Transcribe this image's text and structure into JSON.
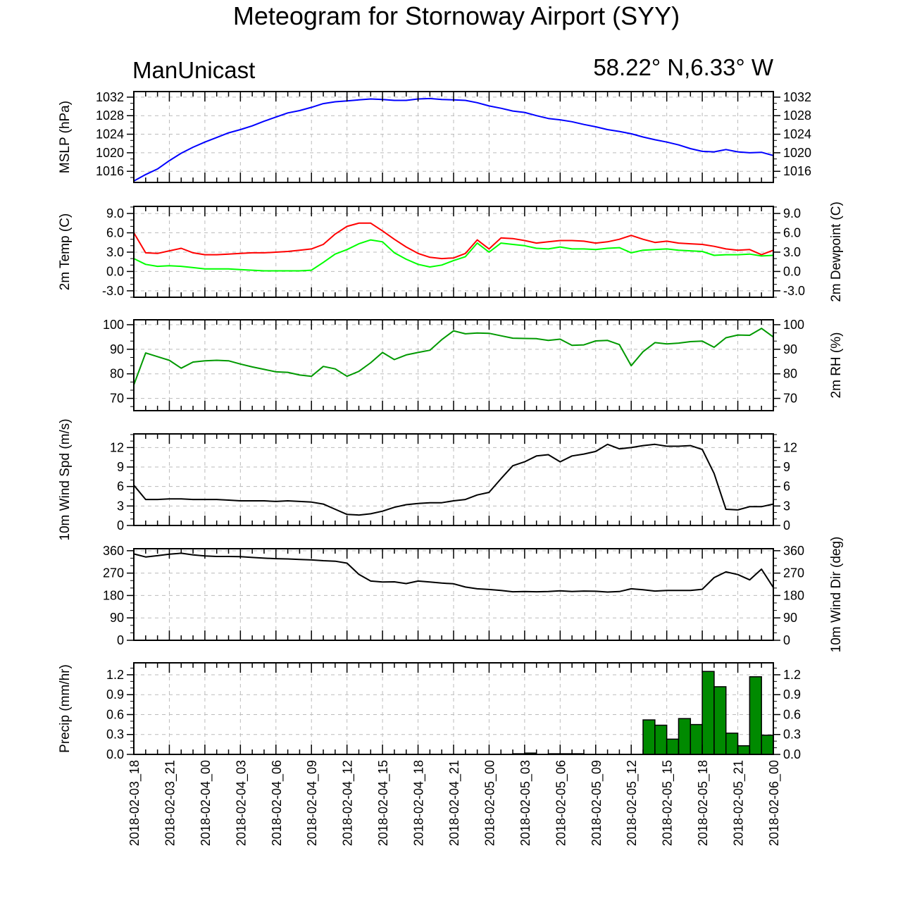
{
  "title": "Meteogram for Stornoway Airport (SYY)",
  "source_label": "ManUnicast",
  "location_label": "58.22° N,6.33° W",
  "x_tick_labels": [
    "2018-02-03_18",
    "2018-02-03_21",
    "2018-02-04_00",
    "2018-02-04_03",
    "2018-02-04_06",
    "2018-02-04_09",
    "2018-02-04_12",
    "2018-02-04_15",
    "2018-02-04_18",
    "2018-02-04_21",
    "2018-02-05_00",
    "2018-02-05_03",
    "2018-02-05_06",
    "2018-02-05_09",
    "2018-02-05_12",
    "2018-02-05_15",
    "2018-02-05_18",
    "2018-02-05_21",
    "2018-02-06_00"
  ],
  "chart_data": [
    {
      "type": "line",
      "ylabel_left": "MSLP (hPa)",
      "ylim": [
        1013.6,
        1033.2
      ],
      "y_ticks": [
        "1016",
        "1020",
        "1024",
        "1028",
        "1032"
      ],
      "right_ticks": [
        "1016",
        "1020",
        "1024",
        "1028",
        "1032"
      ],
      "x_range_hours": [
        0,
        54
      ],
      "series": [
        {
          "color": "#0000ff",
          "x": [
            0,
            1,
            2,
            3,
            4,
            5,
            6,
            7,
            8,
            9,
            10,
            11,
            12,
            13,
            14,
            15,
            16,
            17,
            18,
            19,
            20,
            21,
            22,
            23,
            24,
            25,
            26,
            27,
            28,
            29,
            30,
            31,
            32,
            33,
            34,
            35,
            36,
            37,
            38,
            39,
            40,
            41,
            42,
            43,
            44,
            45,
            46,
            47,
            48,
            49,
            50,
            51,
            52,
            53,
            54
          ],
          "y": [
            1013.9,
            1015.3,
            1016.5,
            1018.3,
            1019.9,
            1021.2,
            1022.3,
            1023.3,
            1024.3,
            1025.0,
            1025.8,
            1026.8,
            1027.7,
            1028.6,
            1029.1,
            1029.8,
            1030.6,
            1031.0,
            1031.2,
            1031.4,
            1031.6,
            1031.5,
            1031.3,
            1031.3,
            1031.6,
            1031.7,
            1031.5,
            1031.4,
            1031.3,
            1030.8,
            1030.1,
            1029.6,
            1029.0,
            1028.7,
            1028.0,
            1027.4,
            1027.1,
            1026.7,
            1026.1,
            1025.6,
            1025.0,
            1024.6,
            1024.1,
            1023.4,
            1022.8,
            1022.3,
            1021.7,
            1020.9,
            1020.3,
            1020.2,
            1020.7,
            1020.2,
            1020.0,
            1020.1,
            1019.4
          ]
        }
      ]
    },
    {
      "type": "line",
      "ylabel_left": "2m Temp (C)",
      "ylabel_right": "2m Dewpoint (C)",
      "ylim": [
        -4.0,
        10.1
      ],
      "y_ticks": [
        "-3.0",
        "0.0",
        "3.0",
        "6.0",
        "9.0"
      ],
      "right_ticks": [
        "-3.0",
        "0.0",
        "3.0",
        "6.0",
        "9.0"
      ],
      "x_range_hours": [
        0,
        54
      ],
      "series": [
        {
          "color": "#ff0000",
          "x": [
            0,
            1,
            2,
            3,
            4,
            5,
            6,
            7,
            8,
            9,
            10,
            11,
            12,
            13,
            14,
            15,
            16,
            17,
            18,
            19,
            20,
            21,
            22,
            23,
            24,
            25,
            26,
            27,
            28,
            29,
            30,
            31,
            32,
            33,
            34,
            35,
            36,
            37,
            38,
            39,
            40,
            41,
            42,
            43,
            44,
            45,
            46,
            47,
            48,
            49,
            50,
            51,
            52,
            53,
            54
          ],
          "y": [
            6.0,
            2.9,
            2.8,
            3.2,
            3.6,
            2.9,
            2.6,
            2.6,
            2.7,
            2.8,
            2.9,
            2.9,
            3.0,
            3.1,
            3.3,
            3.5,
            4.2,
            5.8,
            7.0,
            7.5,
            7.5,
            6.3,
            5.0,
            3.8,
            2.8,
            2.2,
            2.0,
            2.1,
            2.8,
            4.9,
            3.5,
            5.2,
            5.1,
            4.8,
            4.4,
            4.6,
            4.8,
            4.8,
            4.7,
            4.4,
            4.6,
            5.0,
            5.6,
            5.0,
            4.5,
            4.7,
            4.4,
            4.3,
            4.2,
            3.9,
            3.5,
            3.3,
            3.4,
            2.6,
            3.3
          ]
        },
        {
          "color": "#00ff00",
          "x": [
            0,
            1,
            2,
            3,
            4,
            5,
            6,
            7,
            8,
            9,
            10,
            11,
            12,
            13,
            14,
            15,
            16,
            17,
            18,
            19,
            20,
            21,
            22,
            23,
            24,
            25,
            26,
            27,
            28,
            29,
            30,
            31,
            32,
            33,
            34,
            35,
            36,
            37,
            38,
            39,
            40,
            41,
            42,
            43,
            44,
            45,
            46,
            47,
            48,
            49,
            50,
            51,
            52,
            53,
            54
          ],
          "y": [
            2.0,
            1.1,
            0.8,
            0.9,
            0.8,
            0.6,
            0.4,
            0.4,
            0.4,
            0.3,
            0.2,
            0.1,
            0.1,
            0.1,
            0.1,
            0.2,
            1.4,
            2.7,
            3.4,
            4.3,
            4.9,
            4.6,
            2.9,
            1.9,
            1.1,
            0.7,
            1.0,
            1.7,
            2.3,
            4.4,
            3.0,
            4.4,
            4.2,
            4.0,
            3.6,
            3.5,
            3.8,
            3.5,
            3.5,
            3.4,
            3.6,
            3.7,
            2.9,
            3.3,
            3.4,
            3.5,
            3.3,
            3.2,
            3.1,
            2.5,
            2.6,
            2.6,
            2.7,
            2.4,
            2.5
          ]
        }
      ]
    },
    {
      "type": "line",
      "ylabel_right": "2m RH (%)",
      "ylim": [
        65,
        102
      ],
      "y_ticks": [
        "70",
        "80",
        "90",
        "100"
      ],
      "right_ticks": [
        "70",
        "80",
        "90",
        "100"
      ],
      "x_range_hours": [
        0,
        54
      ],
      "series": [
        {
          "color": "#009900",
          "x": [
            0,
            1,
            2,
            3,
            4,
            5,
            6,
            7,
            8,
            9,
            10,
            11,
            12,
            13,
            14,
            15,
            16,
            17,
            18,
            19,
            20,
            21,
            22,
            23,
            24,
            25,
            26,
            27,
            28,
            29,
            30,
            31,
            32,
            33,
            34,
            35,
            36,
            37,
            38,
            39,
            40,
            41,
            42,
            43,
            44,
            45,
            46,
            47,
            48,
            49,
            50,
            51,
            52,
            53,
            54
          ],
          "y": [
            75.5,
            88.5,
            87.0,
            85.5,
            82.3,
            84.8,
            85.3,
            85.5,
            85.3,
            84.0,
            82.8,
            81.8,
            80.8,
            80.6,
            79.5,
            79.0,
            83.0,
            82.0,
            79.0,
            81.0,
            84.5,
            88.7,
            85.8,
            87.7,
            88.7,
            89.6,
            93.9,
            97.5,
            96.3,
            96.6,
            96.5,
            95.5,
            94.5,
            94.4,
            94.3,
            93.6,
            94.1,
            91.6,
            91.8,
            93.4,
            93.6,
            91.9,
            83.3,
            89.0,
            92.7,
            92.2,
            92.5,
            93.1,
            93.3,
            90.8,
            94.7,
            95.8,
            95.7,
            98.5,
            95.0
          ]
        }
      ]
    },
    {
      "type": "line",
      "ylabel_left": "10m Wind Spd (m/s)",
      "ylim": [
        0,
        14.1
      ],
      "y_ticks": [
        "0",
        "3",
        "6",
        "9",
        "12"
      ],
      "right_ticks": [
        "0",
        "3",
        "6",
        "9",
        "12"
      ],
      "x_range_hours": [
        0,
        54
      ],
      "series": [
        {
          "color": "#000000",
          "x": [
            0,
            1,
            2,
            3,
            4,
            5,
            6,
            7,
            8,
            9,
            10,
            11,
            12,
            13,
            14,
            15,
            16,
            17,
            18,
            19,
            20,
            21,
            22,
            23,
            24,
            25,
            26,
            27,
            28,
            29,
            30,
            31,
            32,
            33,
            34,
            35,
            36,
            37,
            38,
            39,
            40,
            41,
            42,
            43,
            44,
            45,
            46,
            47,
            48,
            49,
            50,
            51,
            52,
            53,
            54
          ],
          "y": [
            6.2,
            4.0,
            4.0,
            4.1,
            4.1,
            4.0,
            4.0,
            4.0,
            3.9,
            3.8,
            3.8,
            3.8,
            3.7,
            3.8,
            3.7,
            3.6,
            3.3,
            2.5,
            1.7,
            1.6,
            1.8,
            2.2,
            2.8,
            3.2,
            3.4,
            3.5,
            3.5,
            3.8,
            4.0,
            4.7,
            5.1,
            7.2,
            9.2,
            9.8,
            10.7,
            10.9,
            9.8,
            10.7,
            11.0,
            11.4,
            12.5,
            11.8,
            12.0,
            12.3,
            12.5,
            12.2,
            12.2,
            12.3,
            11.7,
            8.0,
            2.5,
            2.4,
            2.9,
            2.9,
            3.3
          ]
        }
      ]
    },
    {
      "type": "line",
      "ylabel_right": "10m Wind Dir (deg)",
      "ylim": [
        0,
        368
      ],
      "y_ticks": [
        "0",
        "90",
        "180",
        "270",
        "360"
      ],
      "right_ticks": [
        "0",
        "90",
        "180",
        "270",
        "360"
      ],
      "x_range_hours": [
        0,
        54
      ],
      "series": [
        {
          "color": "#000000",
          "x": [
            0,
            1,
            2,
            3,
            4,
            5,
            6,
            7,
            8,
            9,
            10,
            11,
            12,
            13,
            14,
            15,
            16,
            17,
            18,
            19,
            20,
            21,
            22,
            23,
            24,
            25,
            26,
            27,
            28,
            29,
            30,
            31,
            32,
            33,
            34,
            35,
            36,
            37,
            38,
            39,
            40,
            41,
            42,
            43,
            44,
            45,
            46,
            47,
            48,
            49,
            50,
            51,
            52,
            53,
            54
          ],
          "y": [
            347,
            335,
            340,
            346,
            350,
            343,
            339,
            337,
            337,
            336,
            333,
            330,
            328,
            327,
            325,
            323,
            320,
            318,
            310,
            265,
            238,
            234,
            235,
            228,
            238,
            234,
            230,
            227,
            214,
            207,
            204,
            200,
            195,
            196,
            195,
            196,
            199,
            196,
            198,
            197,
            194,
            196,
            207,
            203,
            198,
            200,
            200,
            200,
            205,
            252,
            275,
            264,
            243,
            286,
            212
          ]
        }
      ]
    },
    {
      "type": "bar",
      "ylabel_left": "Precip (mm/hr)",
      "ylim": [
        0,
        1.38
      ],
      "y_ticks": [
        "0.0",
        "0.3",
        "0.6",
        "0.9",
        "1.2"
      ],
      "right_ticks": [
        "0.0",
        "0.3",
        "0.6",
        "0.9",
        "1.2"
      ],
      "x_range_hours": [
        0,
        54
      ],
      "bar_width_hours": 1,
      "series": [
        {
          "color": "#008a00",
          "x": [
            32,
            33,
            35,
            36,
            37,
            43,
            44,
            45,
            46,
            47,
            48,
            49,
            50,
            51,
            52,
            53
          ],
          "y": [
            0.01,
            0.02,
            0.01,
            0.01,
            0.01,
            0.52,
            0.44,
            0.23,
            0.54,
            0.45,
            1.25,
            1.02,
            0.32,
            0.13,
            1.17,
            0.29
          ]
        }
      ]
    }
  ]
}
